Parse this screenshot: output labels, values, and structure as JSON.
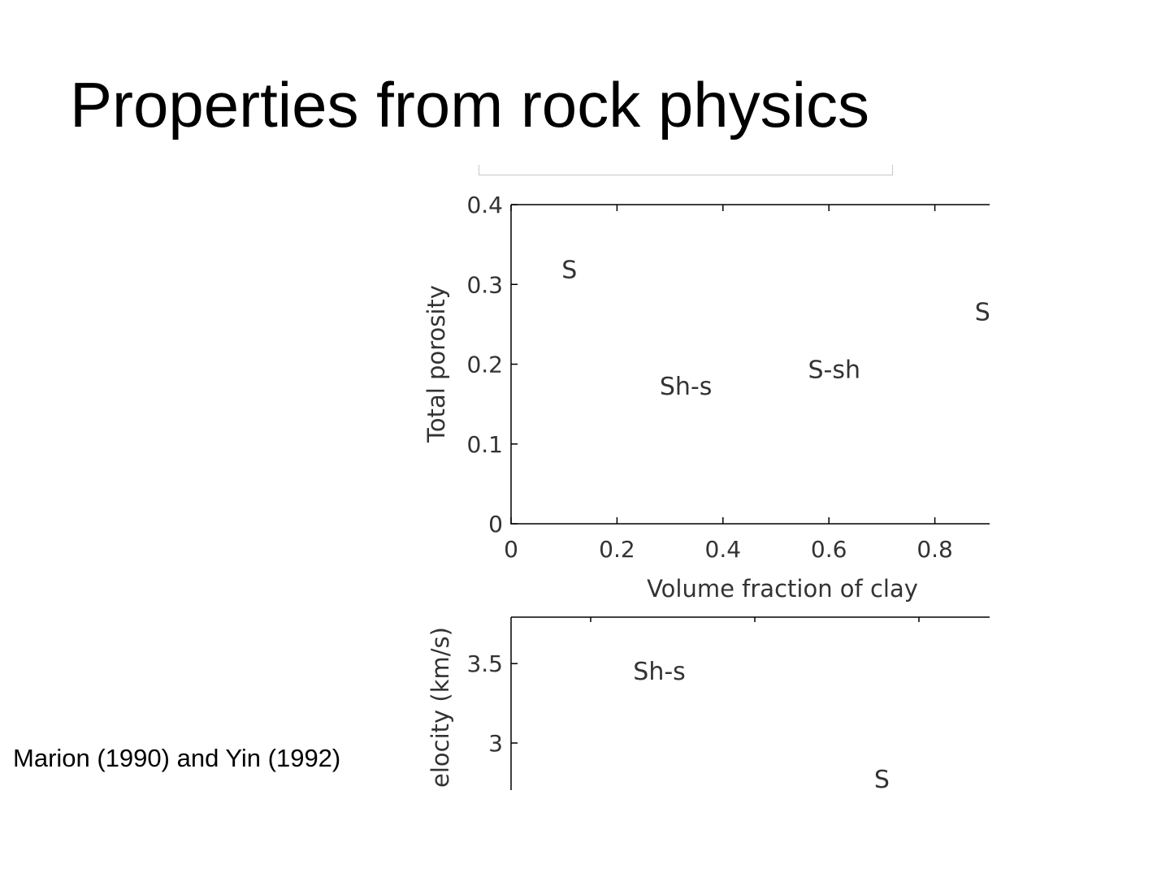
{
  "slide": {
    "title": "Properties from rock physics",
    "citation": "Marion (1990) and Yin (1992)"
  },
  "chart_data": [
    {
      "type": "scatter",
      "title": "",
      "xlabel": "Volume fraction of clay",
      "ylabel": "Total porosity",
      "xlim": [
        0,
        1
      ],
      "ylim": [
        0,
        0.4
      ],
      "xticks": [
        "0",
        "0.2",
        "0.4",
        "0.6",
        "0.8"
      ],
      "yticks": [
        "0",
        "0.1",
        "0.2",
        "0.3",
        "0.4"
      ],
      "grid": false,
      "annotations": [
        {
          "label": "S",
          "x": 0.11,
          "y": 0.318
        },
        {
          "label": "Sh-s",
          "x": 0.33,
          "y": 0.172
        },
        {
          "label": "S-sh",
          "x": 0.61,
          "y": 0.193
        },
        {
          "label": "S",
          "x": 0.89,
          "y": 0.265
        }
      ]
    },
    {
      "type": "scatter",
      "title": "",
      "xlabel": "",
      "ylabel": "elocity (km/s)",
      "ylim": [
        2.7,
        3.8
      ],
      "yticks": [
        "3",
        "3.5"
      ],
      "grid": false,
      "annotations": [
        {
          "label": "Sh-s",
          "x": 0.28,
          "y": 3.45
        },
        {
          "label": "S",
          "x": 0.7,
          "y": 2.77
        }
      ]
    }
  ]
}
